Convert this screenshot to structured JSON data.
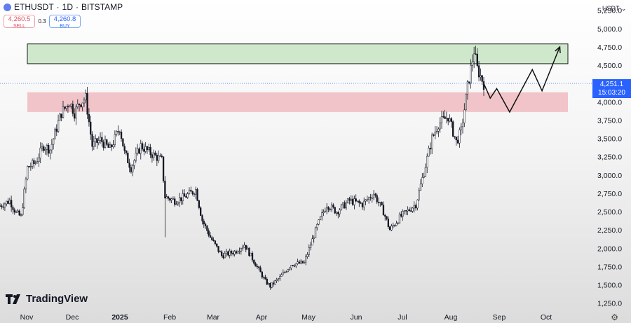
{
  "header": {
    "symbol": "ETHUSDT",
    "interval": "1D",
    "exchange": "BITSTAMP",
    "separator": "·"
  },
  "trade": {
    "sell_price": "4,260.5",
    "sell_label": "SELL",
    "spread": "0.3",
    "buy_price": "4,260.8",
    "buy_label": "BUY"
  },
  "currency": "USDT",
  "last_price": {
    "value": "4,251.1",
    "countdown": "15:03:20"
  },
  "brand": "TradingView",
  "chart_data": {
    "type": "candlestick",
    "title": "",
    "ylim": [
      1180,
      5390
    ],
    "y_ticks": [
      "1,250.0",
      "1,500.0",
      "1,750.0",
      "2,000.0",
      "2,250.0",
      "2,500.0",
      "2,750.0",
      "3,000.0",
      "3,250.0",
      "3,500.0",
      "3,750.0",
      "4,000.0",
      "4,250.0",
      "4,500.0",
      "4,750.0",
      "5,000.0",
      "5,250.0"
    ],
    "x_ticks": [
      "Nov",
      "Dec",
      "2025",
      "Feb",
      "Mar",
      "Apr",
      "May",
      "Jun",
      "Jul",
      "Aug",
      "Sep",
      "Oct"
    ],
    "x_range": [
      "2024-10-24",
      "2025-10-23"
    ],
    "last_price": 4251.1,
    "price_path": [
      [
        "2024-10-24",
        2580
      ],
      [
        "2024-10-30",
        2650
      ],
      [
        "2024-11-03",
        2480
      ],
      [
        "2024-11-06",
        2430
      ],
      [
        "2024-11-10",
        3100
      ],
      [
        "2024-11-15",
        3170
      ],
      [
        "2024-11-20",
        3400
      ],
      [
        "2024-11-24",
        3350
      ],
      [
        "2024-11-29",
        3720
      ],
      [
        "2024-12-01",
        3850
      ],
      [
        "2024-12-06",
        4000
      ],
      [
        "2024-12-09",
        3850
      ],
      [
        "2024-12-12",
        3980
      ],
      [
        "2024-12-16",
        4050
      ],
      [
        "2024-12-20",
        3400
      ],
      [
        "2024-12-25",
        3480
      ],
      [
        "2024-12-31",
        3350
      ],
      [
        "2025-01-06",
        3650
      ],
      [
        "2025-01-09",
        3300
      ],
      [
        "2025-01-13",
        3100
      ],
      [
        "2025-01-19",
        3400
      ],
      [
        "2025-01-25",
        3300
      ],
      [
        "2025-02-01",
        3200
      ],
      [
        "2025-02-03",
        2700
      ],
      [
        "2025-02-09",
        2650
      ],
      [
        "2025-02-15",
        2700
      ],
      [
        "2025-02-22",
        2800
      ],
      [
        "2025-02-26",
        2380
      ],
      [
        "2025-03-03",
        2150
      ],
      [
        "2025-03-10",
        1900
      ],
      [
        "2025-03-18",
        1950
      ],
      [
        "2025-03-24",
        2050
      ],
      [
        "2025-03-30",
        1820
      ],
      [
        "2025-04-06",
        1550
      ],
      [
        "2025-04-09",
        1480
      ],
      [
        "2025-04-15",
        1600
      ],
      [
        "2025-04-22",
        1780
      ],
      [
        "2025-04-30",
        1800
      ],
      [
        "2025-05-08",
        2300
      ],
      [
        "2025-05-14",
        2600
      ],
      [
        "2025-05-20",
        2500
      ],
      [
        "2025-05-28",
        2650
      ],
      [
        "2025-06-05",
        2600
      ],
      [
        "2025-06-12",
        2750
      ],
      [
        "2025-06-18",
        2500
      ],
      [
        "2025-06-22",
        2250
      ],
      [
        "2025-06-28",
        2420
      ],
      [
        "2025-07-08",
        2600
      ],
      [
        "2025-07-12",
        2950
      ],
      [
        "2025-07-18",
        3500
      ],
      [
        "2025-07-22",
        3700
      ],
      [
        "2025-07-28",
        3800
      ],
      [
        "2025-08-02",
        3450
      ],
      [
        "2025-08-05",
        3600
      ],
      [
        "2025-08-09",
        4200
      ],
      [
        "2025-08-13",
        4700
      ],
      [
        "2025-08-15",
        4450
      ],
      [
        "2025-08-19",
        4250
      ]
    ],
    "volatility_spikes": [
      [
        "2025-02-03",
        2150
      ]
    ],
    "zones": [
      {
        "type": "resistance",
        "color": "#cfe8cc",
        "border": "#1a1a1a",
        "y_low": 4520,
        "y_high": 4790,
        "x_from": "2024-10-24",
        "x_to": "2025-10-23"
      },
      {
        "type": "support",
        "color": "#f0c4c8",
        "border": "none",
        "y_low": 3860,
        "y_high": 4130,
        "x_from": "2024-10-24",
        "x_to": "2025-10-23"
      }
    ],
    "projection_path": [
      [
        "2025-08-19",
        4250
      ],
      [
        "2025-08-23",
        4050
      ],
      [
        "2025-08-27",
        4180
      ],
      [
        "2025-09-04",
        3860
      ],
      [
        "2025-09-18",
        4440
      ],
      [
        "2025-09-24",
        4150
      ],
      [
        "2025-10-05",
        4750
      ]
    ],
    "colors": {
      "candle": "#131722",
      "last_price_line": "#2962ff",
      "grid": "none"
    }
  }
}
